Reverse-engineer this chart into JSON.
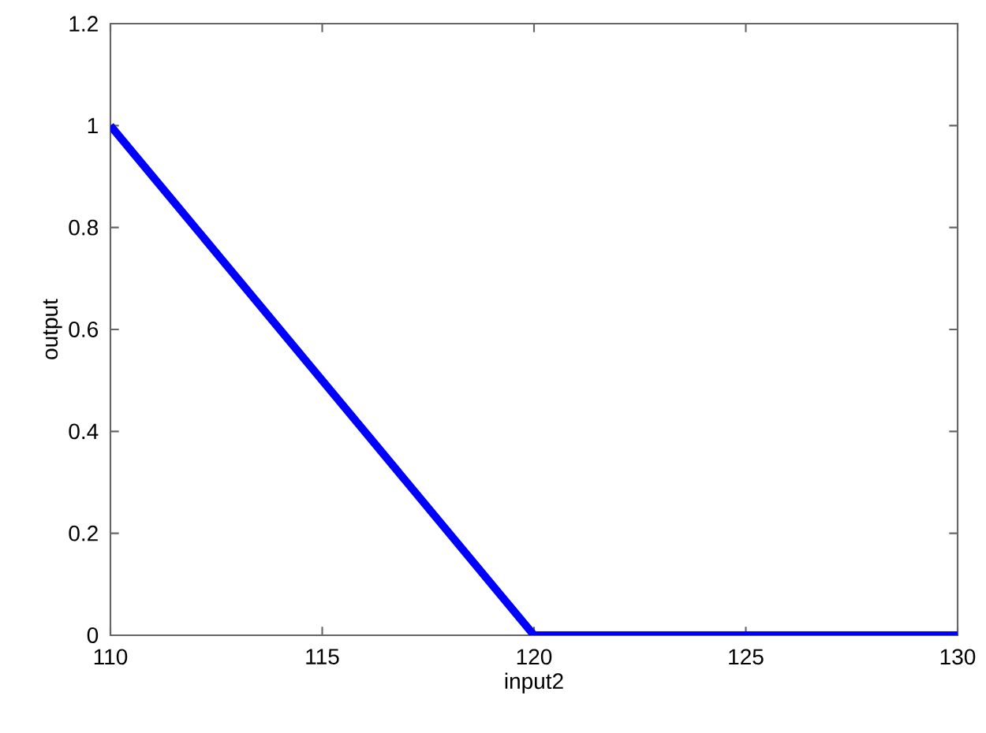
{
  "chart_data": {
    "type": "line",
    "xlabel": "input2",
    "ylabel": "output",
    "x": [
      110,
      120,
      130
    ],
    "series": [
      {
        "color": "#0000ff",
        "values": [
          1,
          0,
          0
        ]
      }
    ],
    "xlim": [
      110,
      130
    ],
    "ylim": [
      0,
      1.2
    ],
    "xticks": [
      110,
      115,
      120,
      125,
      130
    ],
    "yticks": [
      0,
      0.2,
      0.4,
      0.6,
      0.8,
      1,
      1.2
    ],
    "grid": false,
    "marker": "none",
    "line_style": "solid"
  }
}
